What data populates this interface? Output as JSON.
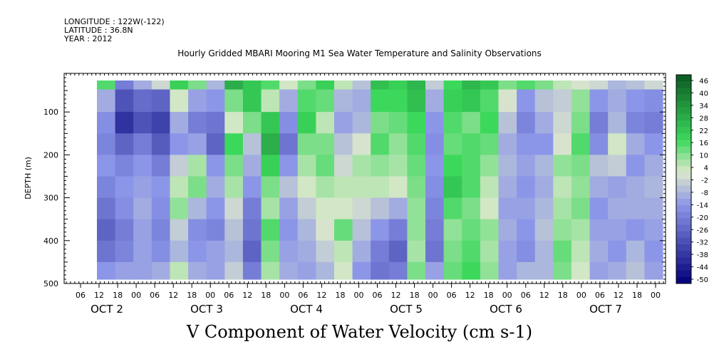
{
  "header": {
    "longitude": "LONGITUDE : 122W(-122)",
    "latitude": "LATITUDE : 36.8N",
    "year": "YEAR : 2012"
  },
  "colors": {
    "scale_low": "#00007a",
    "scale_mid_low": "#8c96e8",
    "scale_mid": "#dde8cc",
    "scale_mid_high": "#3cd85c",
    "scale_high": "#0a5a22"
  },
  "chart_data": {
    "type": "heatmap",
    "title": "Hourly Gridded MBARI Mooring M1 Sea Water Temperature and Salinity Observations",
    "xlabel": "V Component of Water Velocity (cm s-1)",
    "ylabel": "DEPTH (m)",
    "ylim": [
      500,
      10
    ],
    "y_ticks": [
      100,
      200,
      300,
      400,
      500
    ],
    "x_hour_ticks": [
      "06",
      "12",
      "18",
      "00",
      "06",
      "12",
      "18",
      "00",
      "06",
      "12",
      "18",
      "00",
      "06",
      "12",
      "18",
      "00",
      "06",
      "12",
      "18",
      "00",
      "06",
      "12",
      "18",
      "00",
      "06",
      "12",
      "18",
      "00",
      "06",
      "12",
      "18",
      "00"
    ],
    "x_day_labels": [
      "OCT 2",
      "OCT 3",
      "OCT 4",
      "OCT 5",
      "OCT 6",
      "OCT 7"
    ],
    "colorbar": {
      "levels": [
        -50,
        46
      ],
      "labels": [
        "46",
        "40",
        "34",
        "28",
        "22",
        "16",
        "10",
        "4",
        "-2",
        "-8",
        "-14",
        "-20",
        "-26",
        "-32",
        "-38",
        "-44",
        "-50"
      ]
    },
    "grid": false,
    "columns_start_hour": 12,
    "columns_step_hours": 6,
    "depth_rows": [
      20,
      75,
      125,
      175,
      225,
      275,
      325,
      375,
      425,
      475
    ],
    "velocity_grid": [
      [
        14,
        -20,
        -10,
        -2,
        18,
        10,
        -8,
        26,
        20,
        14,
        2,
        10,
        18,
        4,
        -6,
        22,
        18,
        24,
        -4,
        16,
        24,
        20,
        10,
        14,
        10,
        4,
        0,
        -2,
        -8,
        -6,
        -2
      ],
      [
        -10,
        -30,
        -24,
        -26,
        2,
        -12,
        -14,
        10,
        20,
        4,
        -10,
        14,
        12,
        -8,
        -10,
        16,
        16,
        22,
        -10,
        18,
        20,
        14,
        0,
        -14,
        -6,
        -4,
        8,
        -14,
        -10,
        -14,
        -16
      ],
      [
        -16,
        -38,
        -30,
        -34,
        -10,
        -20,
        -22,
        2,
        10,
        20,
        -16,
        18,
        4,
        -12,
        -8,
        10,
        12,
        16,
        -14,
        14,
        10,
        16,
        -6,
        -18,
        -10,
        -2,
        10,
        -20,
        -8,
        -18,
        -20
      ],
      [
        -18,
        -26,
        -20,
        -28,
        -14,
        -12,
        -26,
        16,
        -6,
        26,
        -22,
        10,
        10,
        -6,
        0,
        14,
        8,
        14,
        -16,
        12,
        14,
        12,
        -10,
        -14,
        -14,
        0,
        14,
        -16,
        2,
        -10,
        -14
      ],
      [
        -14,
        -18,
        -14,
        -20,
        -4,
        6,
        -14,
        10,
        -10,
        18,
        -14,
        6,
        12,
        -2,
        6,
        8,
        6,
        12,
        -14,
        16,
        14,
        8,
        -8,
        -12,
        -8,
        8,
        10,
        -6,
        -4,
        -14,
        -10
      ],
      [
        -18,
        -14,
        -12,
        -14,
        4,
        10,
        -10,
        6,
        -14,
        10,
        -6,
        2,
        6,
        4,
        4,
        4,
        2,
        10,
        -16,
        20,
        14,
        4,
        -10,
        -14,
        -10,
        4,
        8,
        -10,
        -12,
        -10,
        -8
      ],
      [
        -22,
        -16,
        -10,
        -16,
        8,
        -8,
        -14,
        -2,
        -20,
        6,
        -12,
        -4,
        2,
        2,
        -2,
        -6,
        -10,
        8,
        -18,
        14,
        10,
        2,
        -12,
        -12,
        -8,
        6,
        10,
        -14,
        -10,
        -10,
        -10
      ],
      [
        -26,
        -20,
        -12,
        -18,
        -4,
        -16,
        -18,
        -6,
        -22,
        14,
        -14,
        -8,
        0,
        12,
        -6,
        -14,
        -20,
        8,
        -20,
        8,
        12,
        8,
        -10,
        -14,
        -6,
        8,
        6,
        -12,
        -12,
        -14,
        -12
      ],
      [
        -22,
        -18,
        -12,
        -16,
        -8,
        -14,
        -12,
        -8,
        -26,
        10,
        -12,
        -10,
        -4,
        4,
        -10,
        -20,
        -26,
        6,
        -22,
        10,
        14,
        6,
        -12,
        -16,
        -8,
        12,
        4,
        -10,
        -14,
        -8,
        -14
      ],
      [
        -14,
        -12,
        -12,
        -10,
        4,
        -10,
        -12,
        -4,
        -20,
        6,
        -10,
        -12,
        -8,
        2,
        -14,
        -22,
        -20,
        10,
        -12,
        12,
        16,
        8,
        -12,
        -8,
        -8,
        10,
        2,
        -12,
        -10,
        -6,
        -12
      ]
    ]
  }
}
